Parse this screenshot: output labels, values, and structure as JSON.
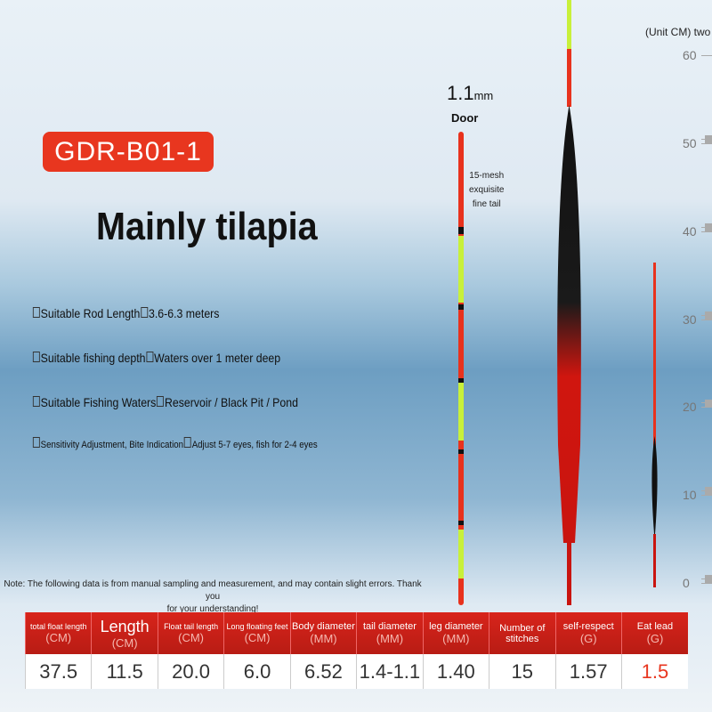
{
  "header": {
    "model": "GDR-B01-1",
    "title": "Mainly tilapia"
  },
  "features": [
    {
      "label": "Suitable Rod Length",
      "value": "3.6-6.3 meters"
    },
    {
      "label": "Suitable fishing depth",
      "value": "Waters over 1 meter deep"
    },
    {
      "label": "Suitable Fishing Waters",
      "value": "Reservoir / Black Pit / Pond"
    },
    {
      "label": "Sensitivity Adjustment, Bite Indication",
      "value": "Adjust 5-7 eyes, fish for 2-4 eyes"
    }
  ],
  "float_labels": {
    "size": "1.1",
    "size_unit": "mm",
    "door": "Door",
    "tail_note": [
      "15-mesh",
      "exquisite",
      "fine tail"
    ]
  },
  "ruler": {
    "unit_label": "(Unit CM) two",
    "ticks": [
      0,
      10,
      20,
      30,
      40,
      50,
      60
    ]
  },
  "note": [
    "Note: The following data is from manual sampling and measurement, and may contain slight errors. Thank you",
    "for your understanding!"
  ],
  "table": {
    "columns": [
      {
        "name": "total float length",
        "unit": "(CM)",
        "value": "37.5"
      },
      {
        "name": "Length",
        "unit": "(CM)",
        "value": "11.5"
      },
      {
        "name": "Float tail length",
        "unit": "(CM)",
        "value": "20.0"
      },
      {
        "name": "Long floating feet",
        "unit": "(CM)",
        "value": "6.0"
      },
      {
        "name": "Body diameter",
        "unit": "(MM)",
        "value": "6.52"
      },
      {
        "name": "tail diameter",
        "unit": "(MM)",
        "value": "1.4-1.1"
      },
      {
        "name": "leg diameter",
        "unit": "(MM)",
        "value": "1.40"
      },
      {
        "name": "Number of stitches",
        "unit": "",
        "value": "15"
      },
      {
        "name": "self-respect",
        "unit": "(G)",
        "value": "1.57"
      },
      {
        "name": "Eat lead",
        "unit": "(G)",
        "value": "1.5"
      }
    ]
  }
}
